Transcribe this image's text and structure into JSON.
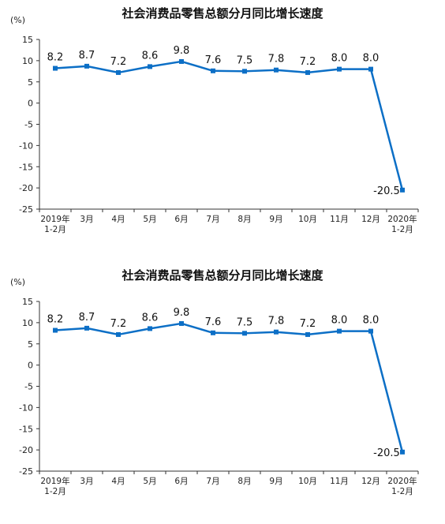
{
  "chart_data": [
    {
      "type": "line",
      "title": "社会消费品零售总额分月同比增长速度",
      "unit": "(%)",
      "categories": [
        [
          "2019年",
          "1-2月"
        ],
        [
          "3月"
        ],
        [
          "4月"
        ],
        [
          "5月"
        ],
        [
          "6月"
        ],
        [
          "7月"
        ],
        [
          "8月"
        ],
        [
          "9月"
        ],
        [
          "10月"
        ],
        [
          "11月"
        ],
        [
          "12月"
        ],
        [
          "2020年",
          "1-2月"
        ]
      ],
      "values": [
        8.2,
        8.7,
        7.2,
        8.6,
        9.8,
        7.6,
        7.5,
        7.8,
        7.2,
        8.0,
        8.0,
        -20.5
      ],
      "value_labels": [
        "8.2",
        "8.7",
        "7.2",
        "8.6",
        "9.8",
        "7.6",
        "7.5",
        "7.8",
        "7.2",
        "8.0",
        "8.0",
        "-20.5"
      ],
      "yticks": [
        "15",
        "10",
        "5",
        "0",
        "-5",
        "-10",
        "-15",
        "-20",
        "-25"
      ],
      "ylim": [
        -25,
        15
      ],
      "grid": false,
      "line_color": "#0c6fc6"
    },
    {
      "type": "line",
      "title": "社会消费品零售总额分月同比增长速度",
      "unit": "(%)",
      "categories": [
        [
          "2019年",
          "1-2月"
        ],
        [
          "3月"
        ],
        [
          "4月"
        ],
        [
          "5月"
        ],
        [
          "6月"
        ],
        [
          "7月"
        ],
        [
          "8月"
        ],
        [
          "9月"
        ],
        [
          "10月"
        ],
        [
          "11月"
        ],
        [
          "12月"
        ],
        [
          "2020年",
          "1-2月"
        ]
      ],
      "values": [
        8.2,
        8.7,
        7.2,
        8.6,
        9.8,
        7.6,
        7.5,
        7.8,
        7.2,
        8.0,
        8.0,
        -20.5
      ],
      "value_labels": [
        "8.2",
        "8.7",
        "7.2",
        "8.6",
        "9.8",
        "7.6",
        "7.5",
        "7.8",
        "7.2",
        "8.0",
        "8.0",
        "-20.5"
      ],
      "yticks": [
        "15",
        "10",
        "5",
        "0",
        "-5",
        "-10",
        "-15",
        "-20",
        "-25"
      ],
      "ylim": [
        -25,
        15
      ],
      "grid": false,
      "line_color": "#0c6fc6"
    }
  ]
}
